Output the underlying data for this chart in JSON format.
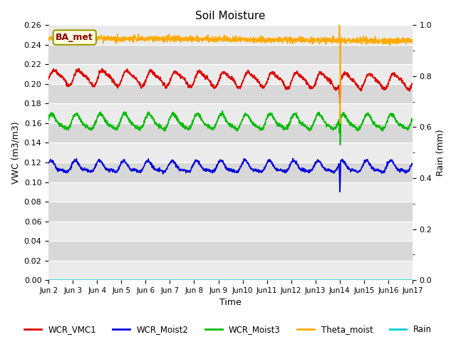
{
  "title": "Soil Moisture",
  "ylabel_left": "VWC (m3/m3)",
  "ylabel_right": "Rain (mm)",
  "xlabel": "Time",
  "ylim_left": [
    0.0,
    0.26
  ],
  "ylim_right": [
    0.0,
    1.0
  ],
  "yticks_left": [
    0.0,
    0.02,
    0.04,
    0.06,
    0.08,
    0.1,
    0.12,
    0.14,
    0.16,
    0.18,
    0.2,
    0.22,
    0.24,
    0.26
  ],
  "yticks_right_labels": [
    0.0,
    0.2,
    0.4,
    0.6,
    0.8,
    1.0
  ],
  "date_start": 2,
  "date_end": 17,
  "n_days": 15,
  "annotation_label": "BA_met",
  "plot_bg_light": "#ebebeb",
  "plot_bg_dark": "#d8d8d8",
  "colors": {
    "WCR_VMC1": "#dd0000",
    "WCR_Moist2": "#0000dd",
    "WCR_Moist3": "#00bb00",
    "Theta_moist": "#ffaa00",
    "Rain": "#00cccc"
  },
  "legend_labels": [
    "WCR_VMC1",
    "WCR_Moist2",
    "WCR_Moist3",
    "Theta_moist",
    "Rain"
  ]
}
